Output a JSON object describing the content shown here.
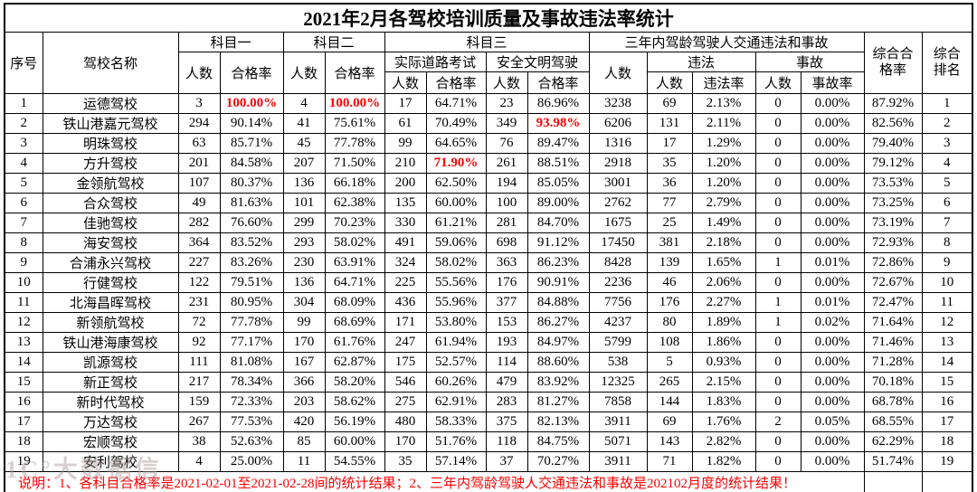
{
  "title": "2021年2月各驾校培训质量及事故违法率统计",
  "accent_colors": {
    "highlight_red": "#ff0000",
    "border_black": "#000000",
    "background": "#ffffff"
  },
  "header": {
    "xuhao": "序号",
    "mingcheng": "驾校名称",
    "kemu1": "科目一",
    "kemu2": "科目二",
    "kemu3": "科目三",
    "renshu": "人数",
    "hegelv": "合格率",
    "road": "实际道路考试",
    "safe": "安全文明驾驶",
    "threeyear": "三年内驾龄驾驶人交通违法和事故",
    "weifa": "违法",
    "weifalv": "违法率",
    "shigu": "事故",
    "shigulv": "事故率",
    "zonghe_hegelv_l1": "综合合",
    "zonghe_hegelv_l2": "格率",
    "zonghe_paiming_l1": "综合",
    "zonghe_paiming_l2": "排名"
  },
  "rows": [
    {
      "xh": "1",
      "name": "运德驾校",
      "k1n": "3",
      "k1r": "100.00%",
      "k2n": "4",
      "k2r": "100.00%",
      "rdn": "17",
      "rdr": "64.71%",
      "sfn": "23",
      "sfr": "86.96%",
      "tyn": "3238",
      "wfn": "69",
      "wfr": "2.13%",
      "sgn": "0",
      "sgr": "0.00%",
      "zhr": "87.92%",
      "rank": "1"
    },
    {
      "xh": "2",
      "name": "铁山港嘉元驾校",
      "k1n": "294",
      "k1r": "90.14%",
      "k2n": "41",
      "k2r": "75.61%",
      "rdn": "61",
      "rdr": "70.49%",
      "sfn": "349",
      "sfr": "93.98%",
      "tyn": "6206",
      "wfn": "131",
      "wfr": "2.11%",
      "sgn": "0",
      "sgr": "0.00%",
      "zhr": "82.56%",
      "rank": "2"
    },
    {
      "xh": "3",
      "name": "明珠驾校",
      "k1n": "63",
      "k1r": "85.71%",
      "k2n": "45",
      "k2r": "77.78%",
      "rdn": "99",
      "rdr": "64.65%",
      "sfn": "76",
      "sfr": "89.47%",
      "tyn": "1316",
      "wfn": "17",
      "wfr": "1.29%",
      "sgn": "0",
      "sgr": "0.00%",
      "zhr": "79.40%",
      "rank": "3"
    },
    {
      "xh": "4",
      "name": "方升驾校",
      "k1n": "201",
      "k1r": "84.58%",
      "k2n": "207",
      "k2r": "71.50%",
      "rdn": "210",
      "rdr": "71.90%",
      "sfn": "261",
      "sfr": "88.51%",
      "tyn": "2918",
      "wfn": "35",
      "wfr": "1.20%",
      "sgn": "0",
      "sgr": "0.00%",
      "zhr": "79.12%",
      "rank": "4"
    },
    {
      "xh": "5",
      "name": "金领航驾校",
      "k1n": "107",
      "k1r": "80.37%",
      "k2n": "136",
      "k2r": "66.18%",
      "rdn": "200",
      "rdr": "62.50%",
      "sfn": "194",
      "sfr": "85.05%",
      "tyn": "3001",
      "wfn": "36",
      "wfr": "1.20%",
      "sgn": "0",
      "sgr": "0.00%",
      "zhr": "73.53%",
      "rank": "5"
    },
    {
      "xh": "6",
      "name": "合众驾校",
      "k1n": "49",
      "k1r": "81.63%",
      "k2n": "101",
      "k2r": "62.38%",
      "rdn": "135",
      "rdr": "60.00%",
      "sfn": "100",
      "sfr": "89.00%",
      "tyn": "2762",
      "wfn": "77",
      "wfr": "2.79%",
      "sgn": "0",
      "sgr": "0.00%",
      "zhr": "73.25%",
      "rank": "6"
    },
    {
      "xh": "7",
      "name": "佳驰驾校",
      "k1n": "282",
      "k1r": "76.60%",
      "k2n": "299",
      "k2r": "70.23%",
      "rdn": "330",
      "rdr": "61.21%",
      "sfn": "281",
      "sfr": "84.70%",
      "tyn": "1675",
      "wfn": "25",
      "wfr": "1.49%",
      "sgn": "0",
      "sgr": "0.00%",
      "zhr": "73.19%",
      "rank": "7"
    },
    {
      "xh": "8",
      "name": "海安驾校",
      "k1n": "364",
      "k1r": "83.52%",
      "k2n": "293",
      "k2r": "58.02%",
      "rdn": "491",
      "rdr": "59.06%",
      "sfn": "698",
      "sfr": "91.12%",
      "tyn": "17450",
      "wfn": "381",
      "wfr": "2.18%",
      "sgn": "0",
      "sgr": "0.00%",
      "zhr": "72.93%",
      "rank": "8"
    },
    {
      "xh": "9",
      "name": "合浦永兴驾校",
      "k1n": "227",
      "k1r": "83.26%",
      "k2n": "230",
      "k2r": "63.91%",
      "rdn": "324",
      "rdr": "58.02%",
      "sfn": "363",
      "sfr": "86.23%",
      "tyn": "8428",
      "wfn": "139",
      "wfr": "1.65%",
      "sgn": "1",
      "sgr": "0.01%",
      "zhr": "72.86%",
      "rank": "9"
    },
    {
      "xh": "10",
      "name": "行健驾校",
      "k1n": "122",
      "k1r": "79.51%",
      "k2n": "136",
      "k2r": "64.71%",
      "rdn": "225",
      "rdr": "55.56%",
      "sfn": "176",
      "sfr": "90.91%",
      "tyn": "2236",
      "wfn": "46",
      "wfr": "2.06%",
      "sgn": "0",
      "sgr": "0.00%",
      "zhr": "72.67%",
      "rank": "10"
    },
    {
      "xh": "11",
      "name": "北海昌晖驾校",
      "k1n": "231",
      "k1r": "80.95%",
      "k2n": "304",
      "k2r": "68.09%",
      "rdn": "436",
      "rdr": "55.96%",
      "sfn": "377",
      "sfr": "84.88%",
      "tyn": "7756",
      "wfn": "176",
      "wfr": "2.27%",
      "sgn": "1",
      "sgr": "0.01%",
      "zhr": "72.47%",
      "rank": "11"
    },
    {
      "xh": "12",
      "name": "新领航驾校",
      "k1n": "72",
      "k1r": "77.78%",
      "k2n": "99",
      "k2r": "68.69%",
      "rdn": "171",
      "rdr": "53.80%",
      "sfn": "153",
      "sfr": "86.27%",
      "tyn": "4237",
      "wfn": "80",
      "wfr": "1.89%",
      "sgn": "1",
      "sgr": "0.02%",
      "zhr": "71.64%",
      "rank": "12"
    },
    {
      "xh": "13",
      "name": "铁山港海康驾校",
      "k1n": "92",
      "k1r": "77.17%",
      "k2n": "170",
      "k2r": "61.76%",
      "rdn": "247",
      "rdr": "61.94%",
      "sfn": "193",
      "sfr": "84.97%",
      "tyn": "5799",
      "wfn": "108",
      "wfr": "1.86%",
      "sgn": "0",
      "sgr": "0.00%",
      "zhr": "71.46%",
      "rank": "13"
    },
    {
      "xh": "14",
      "name": "凯源驾校",
      "k1n": "111",
      "k1r": "81.08%",
      "k2n": "167",
      "k2r": "62.87%",
      "rdn": "175",
      "rdr": "52.57%",
      "sfn": "114",
      "sfr": "88.60%",
      "tyn": "538",
      "wfn": "5",
      "wfr": "0.93%",
      "sgn": "0",
      "sgr": "0.00%",
      "zhr": "71.28%",
      "rank": "14"
    },
    {
      "xh": "15",
      "name": "新正驾校",
      "k1n": "217",
      "k1r": "78.34%",
      "k2n": "366",
      "k2r": "58.20%",
      "rdn": "546",
      "rdr": "60.26%",
      "sfn": "479",
      "sfr": "83.92%",
      "tyn": "12325",
      "wfn": "265",
      "wfr": "2.15%",
      "sgn": "0",
      "sgr": "0.00%",
      "zhr": "70.18%",
      "rank": "15"
    },
    {
      "xh": "16",
      "name": "新时代驾校",
      "k1n": "159",
      "k1r": "72.33%",
      "k2n": "203",
      "k2r": "58.62%",
      "rdn": "275",
      "rdr": "62.91%",
      "sfn": "283",
      "sfr": "81.27%",
      "tyn": "7858",
      "wfn": "144",
      "wfr": "1.83%",
      "sgn": "0",
      "sgr": "0.00%",
      "zhr": "68.78%",
      "rank": "16"
    },
    {
      "xh": "17",
      "name": "万达驾校",
      "k1n": "267",
      "k1r": "77.53%",
      "k2n": "420",
      "k2r": "56.19%",
      "rdn": "480",
      "rdr": "58.33%",
      "sfn": "375",
      "sfr": "82.13%",
      "tyn": "3911",
      "wfn": "69",
      "wfr": "1.76%",
      "sgn": "2",
      "sgr": "0.05%",
      "zhr": "68.55%",
      "rank": "17"
    },
    {
      "xh": "18",
      "name": "宏顺驾校",
      "k1n": "38",
      "k1r": "52.63%",
      "k2n": "85",
      "k2r": "60.00%",
      "rdn": "170",
      "rdr": "51.76%",
      "sfn": "118",
      "sfr": "84.75%",
      "tyn": "5071",
      "wfn": "143",
      "wfr": "2.82%",
      "sgn": "0",
      "sgr": "0.00%",
      "zhr": "62.29%",
      "rank": "18"
    },
    {
      "xh": "19",
      "name": "安利驾校",
      "k1n": "4",
      "k1r": "25.00%",
      "k2n": "11",
      "k2r": "54.55%",
      "rdn": "35",
      "rdr": "57.14%",
      "sfn": "37",
      "sfr": "70.27%",
      "tyn": "3911",
      "wfn": "71",
      "wfr": "1.82%",
      "sgn": "0",
      "sgr": "0.00%",
      "zhr": "51.74%",
      "rank": "19"
    }
  ],
  "red_cells": [
    [
      0,
      "k1r"
    ],
    [
      0,
      "k2r"
    ],
    [
      1,
      "sfr"
    ],
    [
      3,
      "rdr"
    ]
  ],
  "note": "说明：1、各科目合格率是2021-02-01至2021-02-28间的统计结果；2、三年内驾龄驾驶人交通违法和事故是202102月度的统计结果！",
  "watermark": "1C°大数据信"
}
